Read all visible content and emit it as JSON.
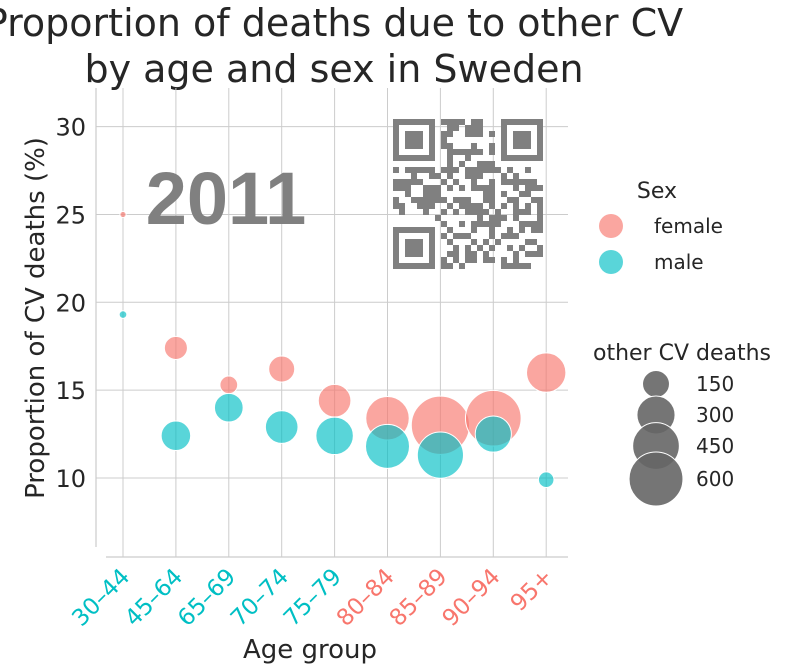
{
  "chart_data": {
    "type": "scatter",
    "title_line1": "Proportion of deaths due to other CV",
    "title_line2": "by age and sex in Sweden",
    "xlabel": "Age group",
    "ylabel": "Proportion of CV deaths (%)",
    "year_label": "2011",
    "categories": [
      "30–44",
      "45–64",
      "65–69",
      "70–74",
      "75–79",
      "80–84",
      "85–89",
      "90–94",
      "95+"
    ],
    "category_label_colors": [
      "#00BFC4",
      "#00BFC4",
      "#00BFC4",
      "#00BFC4",
      "#00BFC4",
      "#F8766D",
      "#F8766D",
      "#F8766D",
      "#F8766D"
    ],
    "ylim": [
      5.5,
      32.2
    ],
    "yticks": [
      10,
      15,
      20,
      25,
      30
    ],
    "grid": true,
    "series": [
      {
        "name": "female",
        "color": "#F8766D",
        "values": [
          25.0,
          17.4,
          15.3,
          16.2,
          14.4,
          13.4,
          13.0,
          13.4,
          16.0
        ],
        "sizes": [
          8,
          110,
          65,
          140,
          220,
          390,
          700,
          640,
          320
        ]
      },
      {
        "name": "male",
        "color": "#00BFC4",
        "values": [
          19.3,
          12.4,
          14.0,
          12.9,
          12.4,
          11.8,
          11.3,
          12.5,
          9.9
        ],
        "sizes": [
          12,
          180,
          170,
          220,
          290,
          400,
          440,
          270,
          50
        ]
      }
    ],
    "legend_sex": {
      "title": "Sex",
      "entries": [
        {
          "label": "female",
          "color": "#F8766D"
        },
        {
          "label": "male",
          "color": "#00BFC4"
        }
      ]
    },
    "legend_size": {
      "title": "other CV deaths",
      "color": "#666666",
      "entries": [
        {
          "label": "150",
          "value": 150
        },
        {
          "label": "300",
          "value": 300
        },
        {
          "label": "450",
          "value": 450
        },
        {
          "label": "600",
          "value": 600
        }
      ]
    },
    "qr_color": "#808080"
  }
}
